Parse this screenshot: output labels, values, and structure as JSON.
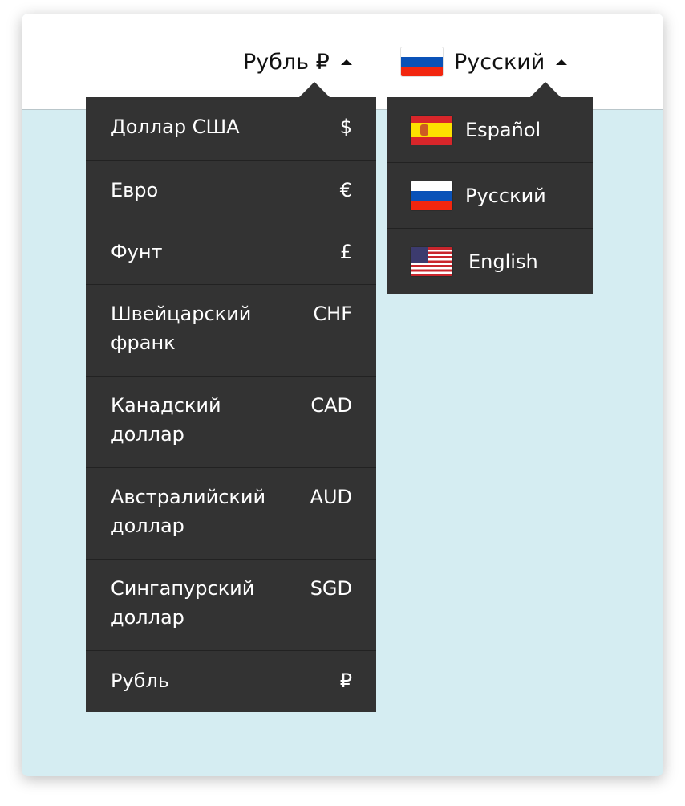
{
  "header": {
    "currency_selector": {
      "label": "Рубль ₽"
    },
    "language_selector": {
      "label": "Русский",
      "flag": "russia-flag"
    }
  },
  "currency_menu": {
    "items": [
      {
        "name": "Доллар США",
        "symbol": "$"
      },
      {
        "name": "Евро",
        "symbol": "€"
      },
      {
        "name": "Фунт",
        "symbol": "£"
      },
      {
        "name": "Швейцарский франк",
        "symbol": "CHF"
      },
      {
        "name": "Канадский доллар",
        "symbol": "CAD"
      },
      {
        "name": "Австралийский доллар",
        "symbol": "AUD"
      },
      {
        "name": "Сингапурский доллар",
        "symbol": "SGD"
      },
      {
        "name": "Рубль",
        "symbol": "₽"
      }
    ]
  },
  "language_menu": {
    "items": [
      {
        "label": "Español",
        "flag": "spain-flag"
      },
      {
        "label": "Русский",
        "flag": "russia-flag"
      },
      {
        "label": "English",
        "flag": "usa-flag"
      }
    ]
  },
  "colors": {
    "menu_bg": "#333333",
    "content_bg": "#d5edf2"
  }
}
